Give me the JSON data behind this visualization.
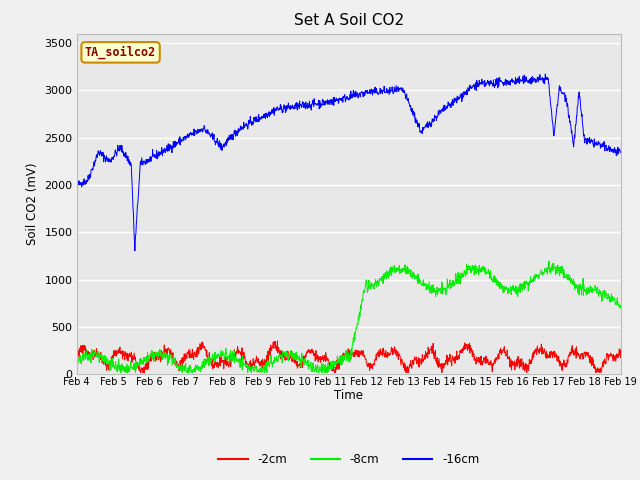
{
  "title": "Set A Soil CO2",
  "ylabel": "Soil CO2 (mV)",
  "xlabel": "Time",
  "annotation_label": "TA_soilco2",
  "ylim": [
    0,
    3600
  ],
  "yticks": [
    0,
    500,
    1000,
    1500,
    2000,
    2500,
    3000,
    3500
  ],
  "xtick_labels": [
    "Feb 4",
    "Feb 5",
    "Feb 6",
    "Feb 7",
    "Feb 8",
    "Feb 9",
    "Feb 10",
    "Feb 11",
    "Feb 12",
    "Feb 13",
    "Feb 14",
    "Feb 15",
    "Feb 16",
    "Feb 17",
    "Feb 18",
    "Feb 19"
  ],
  "legend_labels": [
    "-2cm",
    "-8cm",
    "-16cm"
  ],
  "line_colors": [
    "#ff0000",
    "#00ee00",
    "#0000ff"
  ],
  "plot_bg_color": "#e8e8e8",
  "fig_bg_color": "#f0f0f0",
  "grid_color": "#ffffff",
  "n_points": 1500
}
